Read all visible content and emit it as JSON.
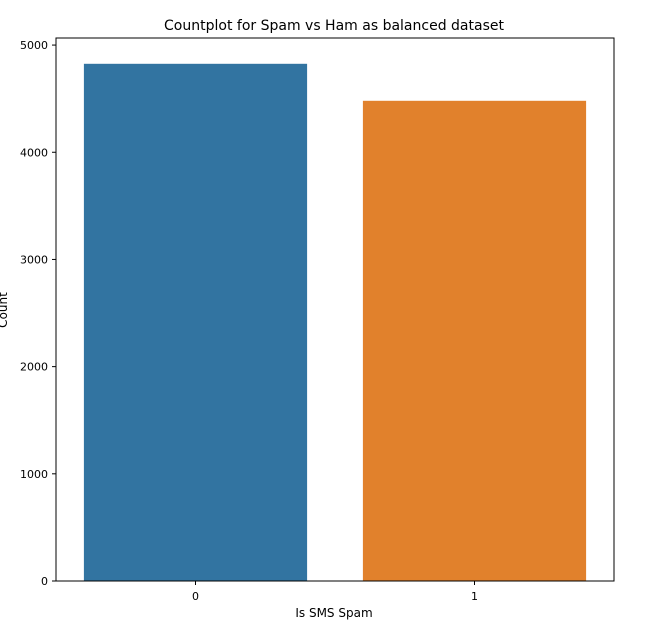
{
  "chart_data": {
    "type": "bar",
    "title": "Countplot for Spam vs Ham as balanced dataset",
    "xlabel": "Is SMS Spam",
    "ylabel": "Count",
    "categories": [
      "0",
      "1"
    ],
    "values": [
      4825,
      4480
    ],
    "colors": [
      "#3274a1",
      "#e1812c"
    ],
    "ylim": [
      0,
      5066
    ],
    "yticks": [
      0,
      1000,
      2000,
      3000,
      4000,
      5000
    ],
    "grid": false,
    "legend": "none"
  }
}
